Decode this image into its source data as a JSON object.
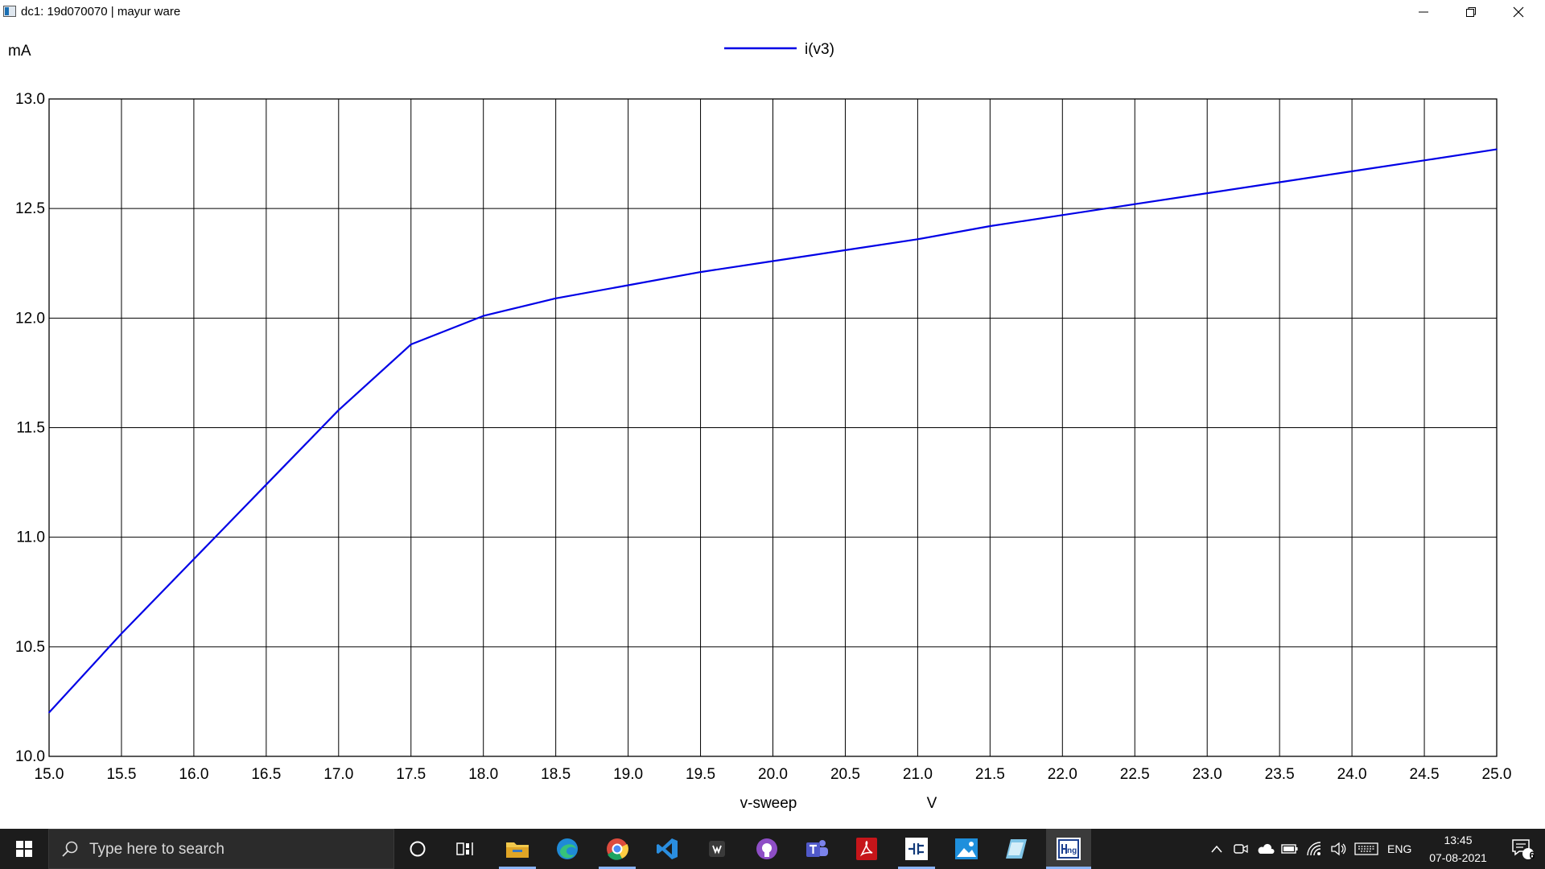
{
  "window": {
    "title": "dc1: 19d070070 | mayur ware",
    "controls": [
      "minimize-icon",
      "restore-icon",
      "close-icon"
    ]
  },
  "chart_data": {
    "type": "line",
    "title": "",
    "ylabel": "mA",
    "xlabel": "v-sweep",
    "xunit": "V",
    "xlim": [
      15.0,
      25.0
    ],
    "ylim": [
      10.0,
      13.0
    ],
    "xticks": [
      "15.0",
      "15.5",
      "16.0",
      "16.5",
      "17.0",
      "17.5",
      "18.0",
      "18.5",
      "19.0",
      "19.5",
      "20.0",
      "20.5",
      "21.0",
      "21.5",
      "22.0",
      "22.5",
      "23.0",
      "23.5",
      "24.0",
      "24.5",
      "25.0"
    ],
    "yticks": [
      "10.0",
      "10.5",
      "11.0",
      "11.5",
      "12.0",
      "12.5",
      "13.0"
    ],
    "grid": true,
    "legend_position": "top-center",
    "series": [
      {
        "name": "i(v3)",
        "color": "#0000e6",
        "x": [
          15.0,
          15.5,
          16.0,
          16.5,
          17.0,
          17.5,
          18.0,
          18.5,
          19.0,
          19.5,
          20.0,
          20.5,
          21.0,
          21.5,
          22.0,
          22.5,
          23.0,
          23.5,
          24.0,
          24.5,
          25.0
        ],
        "y": [
          10.2,
          10.56,
          10.9,
          11.24,
          11.58,
          11.88,
          12.01,
          12.09,
          12.15,
          12.21,
          12.26,
          12.31,
          12.36,
          12.42,
          12.47,
          12.52,
          12.57,
          12.62,
          12.67,
          12.72,
          12.77
        ]
      }
    ]
  },
  "taskbar": {
    "search_placeholder": "Type here to search",
    "apps": [
      "cortana-icon",
      "task-view-icon",
      "file-explorer-icon",
      "edge-icon",
      "chrome-icon",
      "vscode-icon",
      "app-icon",
      "github-desktop-icon",
      "teams-icon",
      "acrobat-icon",
      "schematic-app-icon",
      "photos-icon",
      "editor-icon",
      "ngspice-icon"
    ],
    "tray": {
      "language": "ENG",
      "time": "13:45",
      "date": "07-08-2021",
      "notification_count": "6"
    }
  }
}
